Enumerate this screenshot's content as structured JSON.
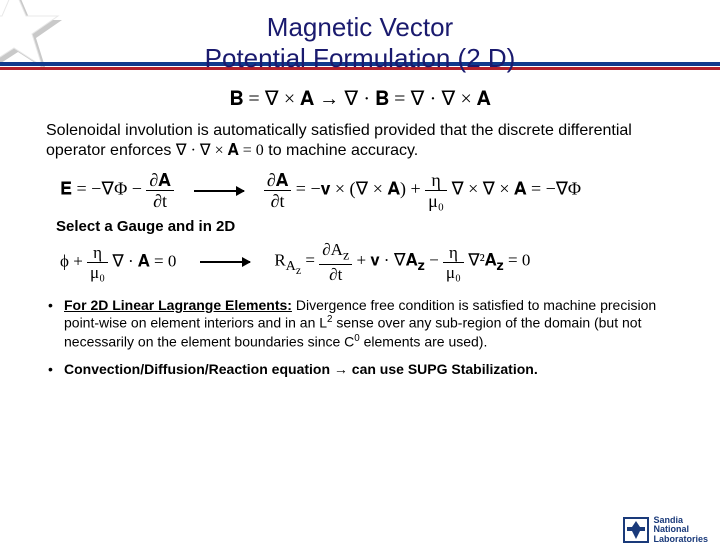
{
  "colors": {
    "title": "#1a1a6e",
    "banner_blue": "#103a8c",
    "banner_red": "#b2202a",
    "star_white": "#ffffff",
    "star_shadow": "#c9c9c9",
    "logo_blue": "#1a3a7a",
    "text": "#000000",
    "bg": "#ffffff"
  },
  "title": {
    "line1": "Magnetic Vector",
    "line2": "Potential Formulation (2 D)",
    "fontsize": 26
  },
  "eq_main": "𝐁 = ∇ × 𝐀  →  ∇ · 𝐁 = ∇ · ∇ × 𝐀",
  "para1": {
    "pre": "Solenoidal involution is automatically satisfied provided that the discrete differential operator enforces ",
    "inline_eq": "∇ · ∇ × 𝐀 = 0",
    "post": " to machine accuracy."
  },
  "eq_E": {
    "lhs_html": "𝐄 = −∇Φ − <span class='frac'><span class='num'>∂𝐀</span><span class='den'>∂t</span></span>",
    "rhs_html": "<span class='frac'><span class='num'>∂𝐀</span><span class='den'>∂t</span></span> = −𝐯 × (∇ × 𝐀) + <span class='frac'><span class='num'>η</span><span class='den'>μ₀</span></span> ∇ × ∇ × 𝐀 = −∇Φ"
  },
  "gauge_heading": "Select a Gauge and in 2D",
  "eq_gauge": {
    "lhs_html": "ϕ + <span class='frac'><span class='num'>η</span><span class='den'>μ₀</span></span> ∇ · 𝐀 = 0",
    "rhs_html": "R<sub>A<sub>z</sub></sub> = <span class='frac'><span class='num'>∂A<sub>z</sub></span><span class='den'>∂t</span></span> + 𝐯 · ∇𝐀<sub>𝐳</sub> − <span class='frac'><span class='num'>η</span><span class='den'>μ₀</span></span> ∇²𝐀<sub>𝐳</sub> = 0"
  },
  "bullets": [
    {
      "lead": "For 2D Linear Lagrange Elements:",
      "rest": " Divergence free condition is satisfied to machine precision point-wise on element interiors and in an L",
      "sup1": "2",
      "rest2": " sense over any sub-region of the domain (but not necessarily on the element boundaries since C",
      "sup2": "0",
      "rest3": " elements are used)."
    },
    {
      "lead": "",
      "rest": "Convection/Diffusion/Reaction equation → can use SUPG Stabilization."
    }
  ],
  "logo": {
    "line1": "Sandia",
    "line2": "National",
    "line3": "Laboratories"
  }
}
